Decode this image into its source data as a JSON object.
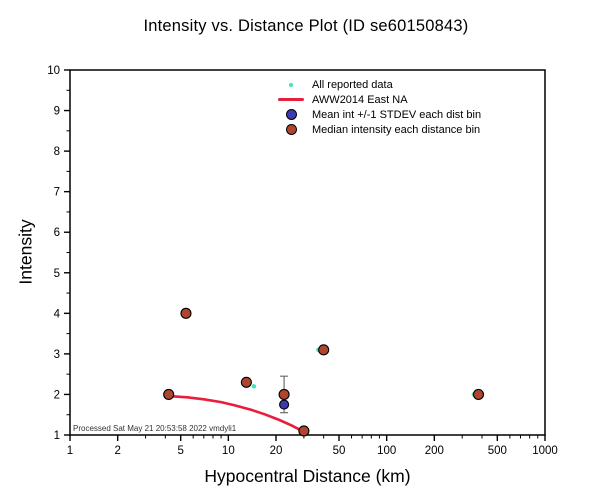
{
  "chart": {
    "title": "Intensity vs. Distance Plot (ID se60150843)",
    "xlabel": "Hypocentral Distance (km)",
    "ylabel": "Intensity",
    "footer": "Processed Sat May 21 20:53:58 2022 vmdyli1"
  },
  "chart_data": {
    "type": "scatter",
    "title": "Intensity vs. Distance Plot (ID se60150843)",
    "xlabel": "Hypocentral Distance (km)",
    "ylabel": "Intensity",
    "x_scale": "log",
    "xlim": [
      1,
      1000
    ],
    "ylim": [
      1,
      10
    ],
    "x_ticks": [
      1,
      2,
      5,
      10,
      20,
      50,
      100,
      200,
      500,
      1000
    ],
    "y_ticks": [
      1,
      2,
      3,
      4,
      5,
      6,
      7,
      8,
      9,
      10
    ],
    "grid": false,
    "legend_position": "top-center-inside",
    "colors": {
      "all_reported": "#3fe6b4",
      "model_line": "#e81e3c",
      "mean": "#3c3cb0",
      "median": "#b0452f"
    },
    "series": [
      {
        "name": "All reported data",
        "type": "scatter",
        "marker": "dot",
        "color_key": "all_reported",
        "points": [
          [
            14.5,
            2.2
          ],
          [
            37,
            3.1
          ],
          [
            355,
            2.0
          ]
        ]
      },
      {
        "name": "AWW2014 East NA",
        "type": "line",
        "color_key": "model_line",
        "points": [
          [
            4.2,
            1.96
          ],
          [
            5.5,
            1.93
          ],
          [
            7,
            1.88
          ],
          [
            9,
            1.81
          ],
          [
            11,
            1.73
          ],
          [
            14,
            1.62
          ],
          [
            17,
            1.51
          ],
          [
            21,
            1.37
          ],
          [
            25,
            1.24
          ],
          [
            28,
            1.14
          ],
          [
            30.5,
            1.06
          ]
        ]
      },
      {
        "name": "Mean int +/-1 STDEV each dist bin",
        "type": "scatter",
        "marker": "circle",
        "color_key": "mean",
        "points": [
          [
            22.5,
            1.75
          ]
        ],
        "error_bars": [
          {
            "x": 22.5,
            "low": 1.55,
            "high": 2.45
          }
        ]
      },
      {
        "name": "Median intensity each distance bin",
        "type": "scatter",
        "marker": "circle",
        "color_key": "median",
        "points": [
          [
            4.2,
            2.0
          ],
          [
            5.4,
            4.0
          ],
          [
            13,
            2.3
          ],
          [
            22.5,
            2.0
          ],
          [
            30,
            1.1
          ],
          [
            40,
            3.1
          ],
          [
            380,
            2.0
          ]
        ]
      }
    ]
  }
}
